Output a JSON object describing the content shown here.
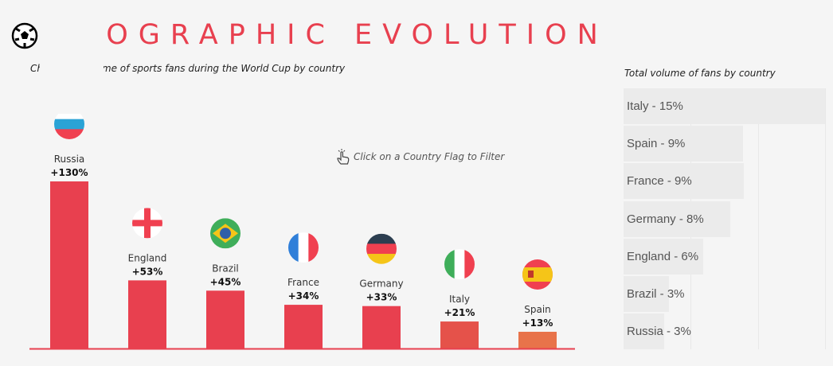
{
  "header": {
    "title": "GEOGRAPHIC EVOLUTION",
    "icon": "soccer-ball-icon",
    "subtitle": "Change in volume of sports fans during the World Cup by country",
    "hint": "Click on a Country Flag to Filter",
    "accent": "#e8404f"
  },
  "chart_data": [
    {
      "type": "bar",
      "title": "Change in volume of sports fans during the World Cup by country",
      "categories": [
        "Russia",
        "England",
        "Brazil",
        "France",
        "Germany",
        "Italy",
        "Spain"
      ],
      "values": [
        130,
        53,
        45,
        34,
        33,
        21,
        13
      ],
      "labels": [
        "+130%",
        "+53%",
        "+45%",
        "+34%",
        "+33%",
        "+21%",
        "+13%"
      ],
      "colors": [
        "#e8404f",
        "#e8404f",
        "#e8404f",
        "#e8404f",
        "#e8404f",
        "#e5524a",
        "#e8734a"
      ],
      "ylim": [
        0,
        130
      ],
      "grid": false
    },
    {
      "type": "bar",
      "orientation": "horizontal",
      "title": "Total volume of fans by country",
      "categories": [
        "Italy",
        "Spain",
        "France",
        "Germany",
        "England",
        "Brazil",
        "Russia"
      ],
      "values": [
        15,
        9,
        9,
        8,
        6,
        3,
        3
      ],
      "labels": [
        "Italy - 15%",
        "Spain - 9%",
        "France - 9%",
        "Germany - 8%",
        "England - 6%",
        "Brazil - 3%",
        "Russia - 3%"
      ],
      "color": "#ebebeb"
    }
  ]
}
